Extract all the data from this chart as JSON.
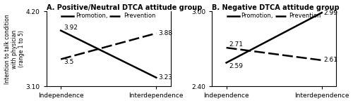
{
  "panel_A": {
    "title": "A. Positive/Neutral DTCA attitude group",
    "promotion": [
      3.92,
      3.23
    ],
    "prevention": [
      3.5,
      3.88
    ],
    "ylim": [
      3.1,
      4.2
    ],
    "ytick_min": "3.10",
    "ytick_max": "4.20",
    "ytick_min_val": 3.1,
    "ytick_max_val": 4.2,
    "label_promo_left": "3.92",
    "label_prev_left": "3.5",
    "label_promo_right": "3.23",
    "label_prev_right": "3.88"
  },
  "panel_B": {
    "title": "B. Negative DTCA attitude group",
    "promotion": [
      2.59,
      2.99
    ],
    "prevention": [
      2.71,
      2.61
    ],
    "ylim": [
      2.4,
      3.0
    ],
    "ytick_min": "2.40",
    "ytick_max": "3.00",
    "ytick_min_val": 2.4,
    "ytick_max_val": 3.0,
    "label_promo_left": "2.59",
    "label_prev_left": "2.71",
    "label_promo_right": "2.99",
    "label_prev_right": "2.61"
  },
  "xlabel_left": "Independence",
  "xlabel_right": "Interdependence",
  "ylabel": "Intention to talk condition\nwith physician\n(range 1 to 5)",
  "legend_promotion": "Promotion,",
  "legend_prevention": "Prevention",
  "linewidth": 1.8
}
